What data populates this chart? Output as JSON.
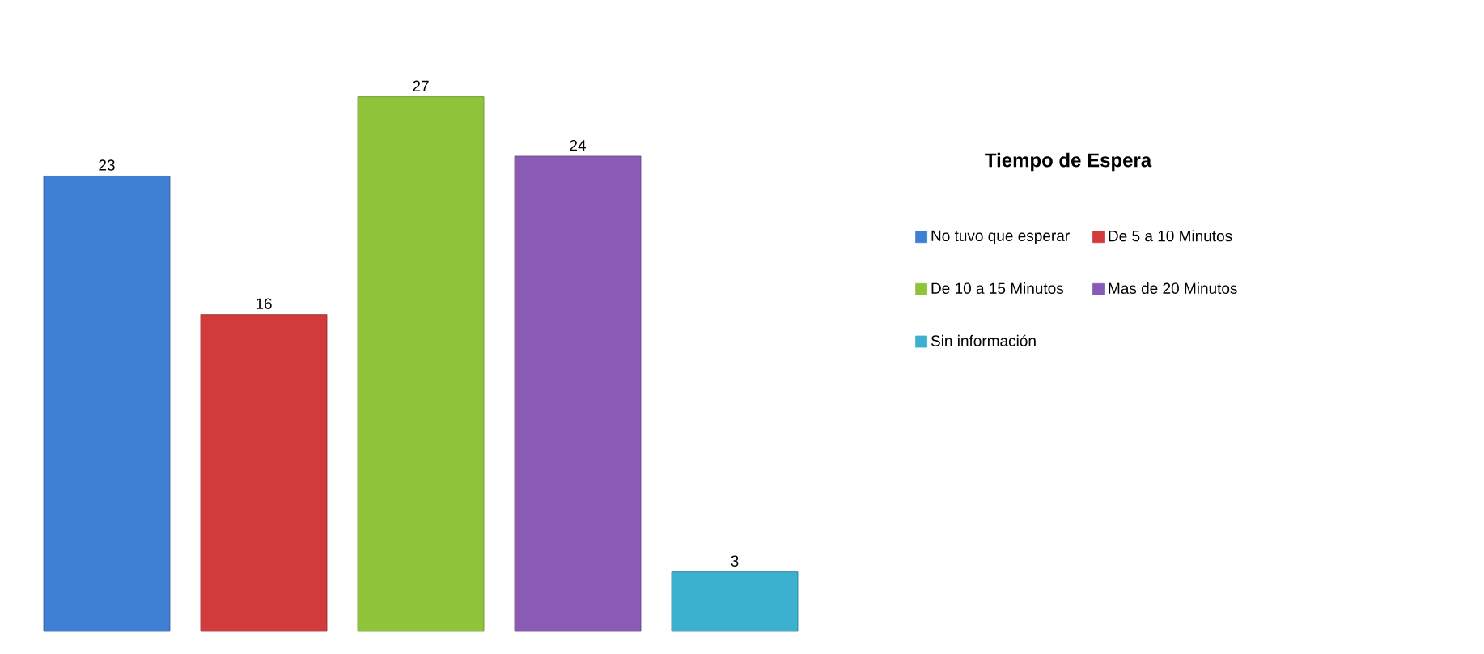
{
  "chart_data": {
    "type": "bar",
    "legend_title": "Tiempo de Espera",
    "categories": [
      null
    ],
    "series": [
      {
        "name": "No tuvo que esperar",
        "color": "#3f7fd4",
        "values": [
          23
        ]
      },
      {
        "name": "De 5 a 10 Minutos",
        "color": "#d23b3b",
        "values": [
          16
        ]
      },
      {
        "name": "De 10 a 15 Minutos",
        "color": "#8fc43a",
        "values": [
          27
        ]
      },
      {
        "name": "Mas de 20 Minutos",
        "color": "#8a5bb5",
        "values": [
          24
        ]
      },
      {
        "name": "Sin información",
        "color": "#3bb0cf",
        "values": [
          3
        ]
      }
    ],
    "data_labels": true,
    "legend": "right"
  }
}
